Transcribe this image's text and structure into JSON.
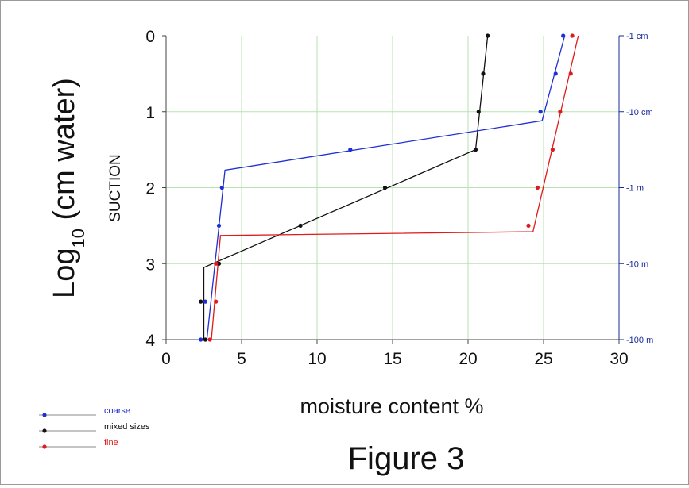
{
  "figure_title": "Figure 3",
  "chart_data": {
    "type": "line",
    "title": "",
    "xlabel": "moisture content %",
    "ylabel_main": "Log",
    "ylabel_sub": "10",
    "ylabel_tail": " (cm water)",
    "ylabel_secondary": "SUCTION",
    "xlim": [
      0,
      30
    ],
    "ylim": [
      0,
      4
    ],
    "y_inverted": true,
    "grid": true,
    "grid_color": "#b6e3b1",
    "x_ticks": [
      0,
      5,
      10,
      15,
      20,
      25,
      30
    ],
    "y_ticks": [
      0,
      1,
      2,
      3,
      4
    ],
    "right_axis": {
      "color": "#1a2a9a",
      "ticks": [
        {
          "y": 0,
          "label": "-1 cm"
        },
        {
          "y": 1,
          "label": "-10 cm"
        },
        {
          "y": 2,
          "label": "-1 m"
        },
        {
          "y": 3,
          "label": "-10 m"
        },
        {
          "y": 4,
          "label": "-100 m"
        }
      ]
    },
    "legend_position": "bottom-left",
    "series": [
      {
        "name": "coarse",
        "color": "#1f2fd6",
        "points": [
          [
            26.3,
            0
          ],
          [
            25.8,
            0.5
          ],
          [
            24.8,
            1
          ],
          [
            12.2,
            1.5
          ],
          [
            3.7,
            2
          ],
          [
            3.5,
            2.5
          ],
          [
            2.6,
            3.5
          ],
          [
            2.3,
            4
          ]
        ],
        "line": [
          [
            26.4,
            0
          ],
          [
            24.9,
            1.12
          ],
          [
            3.9,
            1.77
          ],
          [
            2.7,
            4
          ]
        ]
      },
      {
        "name": "mixed sizes",
        "color": "#111111",
        "points": [
          [
            21.3,
            0
          ],
          [
            21.0,
            0.5
          ],
          [
            20.7,
            1
          ],
          [
            20.5,
            1.5
          ],
          [
            14.5,
            2
          ],
          [
            8.9,
            2.5
          ],
          [
            3.5,
            3
          ],
          [
            2.3,
            3.5
          ],
          [
            2.6,
            4
          ]
        ],
        "line": [
          [
            21.3,
            0
          ],
          [
            20.5,
            1.5
          ],
          [
            2.5,
            3.05
          ],
          [
            2.5,
            4
          ]
        ]
      },
      {
        "name": "fine",
        "color": "#e01a1a",
        "points": [
          [
            26.9,
            0
          ],
          [
            26.8,
            0.5
          ],
          [
            26.1,
            1
          ],
          [
            25.6,
            1.5
          ],
          [
            24.6,
            2
          ],
          [
            24.0,
            2.5
          ],
          [
            3.3,
            3
          ],
          [
            3.3,
            3.5
          ],
          [
            2.9,
            4
          ]
        ],
        "line": [
          [
            27.3,
            0
          ],
          [
            24.3,
            2.58
          ],
          [
            3.6,
            2.63
          ],
          [
            3.0,
            4
          ]
        ]
      }
    ]
  }
}
